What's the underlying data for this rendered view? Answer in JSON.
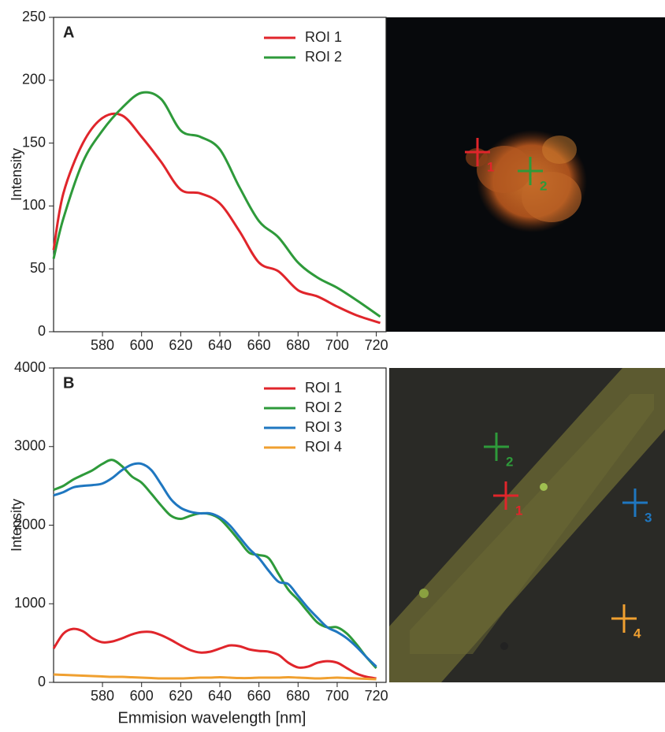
{
  "chart_data": [
    {
      "type": "line",
      "panel_label": "A",
      "ylabel": "Intensity",
      "x": [
        555,
        560,
        570,
        580,
        590,
        600,
        610,
        620,
        630,
        640,
        650,
        660,
        670,
        680,
        690,
        700,
        710,
        722
      ],
      "series": [
        {
          "name": "ROI 1",
          "color": "#e0252b",
          "values": [
            65,
            110,
            150,
            170,
            172,
            155,
            135,
            113,
            110,
            102,
            80,
            55,
            48,
            33,
            28,
            20,
            13,
            7
          ]
        },
        {
          "name": "ROI 2",
          "color": "#2e9a3a",
          "values": [
            58,
            90,
            135,
            160,
            178,
            190,
            185,
            160,
            155,
            145,
            115,
            88,
            75,
            55,
            43,
            35,
            25,
            12
          ]
        }
      ],
      "xlim": [
        555,
        725
      ],
      "ylim": [
        0,
        250
      ],
      "xticks": [
        580,
        600,
        620,
        640,
        660,
        680,
        700,
        720
      ],
      "yticks": [
        0,
        50,
        100,
        150,
        200,
        250
      ],
      "legend": "upper-right",
      "image_markers": [
        {
          "label": "1",
          "color": "#e0252b"
        },
        {
          "label": "2",
          "color": "#2e9a3a"
        }
      ]
    },
    {
      "type": "line",
      "panel_label": "B",
      "ylabel": "Intensity",
      "xlabel": "Emmision wavelength [nm]",
      "x": [
        555,
        560,
        565,
        570,
        575,
        580,
        585,
        590,
        595,
        600,
        605,
        610,
        615,
        620,
        625,
        630,
        635,
        640,
        645,
        650,
        655,
        660,
        665,
        670,
        675,
        680,
        685,
        690,
        695,
        700,
        705,
        710,
        715,
        720
      ],
      "series": [
        {
          "name": "ROI 1",
          "color": "#e0252b",
          "values": [
            430,
            620,
            680,
            650,
            560,
            510,
            520,
            560,
            610,
            640,
            640,
            600,
            540,
            470,
            410,
            380,
            390,
            430,
            470,
            460,
            420,
            400,
            390,
            350,
            250,
            190,
            200,
            250,
            270,
            250,
            180,
            110,
            70,
            50
          ]
        },
        {
          "name": "ROI 2",
          "color": "#2e9a3a",
          "values": [
            2450,
            2500,
            2580,
            2640,
            2700,
            2780,
            2830,
            2750,
            2620,
            2540,
            2400,
            2250,
            2120,
            2080,
            2120,
            2150,
            2140,
            2080,
            1950,
            1800,
            1650,
            1620,
            1580,
            1380,
            1180,
            1050,
            900,
            760,
            700,
            700,
            620,
            480,
            320,
            180
          ]
        },
        {
          "name": "ROI 3",
          "color": "#1f77c0",
          "values": [
            2380,
            2420,
            2480,
            2500,
            2510,
            2530,
            2600,
            2700,
            2770,
            2780,
            2700,
            2520,
            2330,
            2220,
            2170,
            2150,
            2150,
            2100,
            2000,
            1850,
            1700,
            1580,
            1420,
            1280,
            1250,
            1100,
            950,
            820,
            700,
            640,
            560,
            450,
            320,
            200
          ]
        },
        {
          "name": "ROI 4",
          "color": "#f0a030",
          "values": [
            100,
            95,
            90,
            85,
            80,
            75,
            70,
            70,
            65,
            60,
            55,
            50,
            50,
            50,
            55,
            60,
            60,
            65,
            60,
            55,
            55,
            60,
            60,
            60,
            65,
            60,
            55,
            50,
            55,
            60,
            55,
            50,
            45,
            40
          ]
        }
      ],
      "xlim": [
        555,
        725
      ],
      "ylim": [
        0,
        4000
      ],
      "xticks": [
        580,
        600,
        620,
        640,
        660,
        680,
        700,
        720
      ],
      "yticks": [
        0,
        1000,
        2000,
        3000,
        4000
      ],
      "legend": "upper-right",
      "image_markers": [
        {
          "label": "2",
          "color": "#2e9a3a"
        },
        {
          "label": "1",
          "color": "#e0252b"
        },
        {
          "label": "3",
          "color": "#1f77c0"
        },
        {
          "label": "4",
          "color": "#f0a030"
        }
      ]
    }
  ]
}
